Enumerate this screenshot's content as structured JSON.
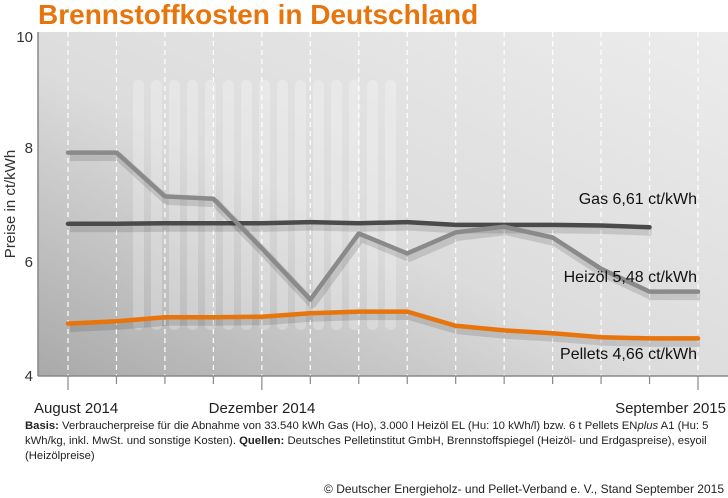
{
  "chart_data": {
    "type": "line",
    "title": "Brennstoffkosten in Deutschland",
    "ylabel": "Preise in ct/kWh",
    "ylim": [
      4,
      10
    ],
    "yticks": [
      "4",
      "6",
      "8",
      "10"
    ],
    "x": [
      "Aug 2014",
      "Sep 2014",
      "Okt 2014",
      "Nov 2014",
      "Dez 2014",
      "Jan 2015",
      "Feb 2015",
      "Mär 2015",
      "Apr 2015",
      "Mai 2015",
      "Jun 2015",
      "Jul 2015",
      "Aug 2015",
      "Sep 2015"
    ],
    "xtick_labels": {
      "first": "August 2014",
      "middle": "Dezember 2014",
      "last": "September 2015"
    },
    "grid": "vertical dashed white",
    "series": [
      {
        "name": "Gas",
        "label": "Gas 6,61 ct/kWh",
        "color": "#4a4a4a",
        "values": [
          6.67,
          6.67,
          6.68,
          6.68,
          6.68,
          6.7,
          6.68,
          6.7,
          6.65,
          6.65,
          6.65,
          6.64,
          6.61,
          null
        ]
      },
      {
        "name": "Heizöl",
        "label": "Heizöl 5,48 ct/kWh",
        "color": "#8a8a8a",
        "values": [
          7.92,
          7.92,
          7.15,
          7.11,
          6.24,
          5.34,
          6.5,
          6.15,
          6.52,
          6.62,
          6.43,
          5.88,
          5.48,
          5.48
        ]
      },
      {
        "name": "Pellets",
        "label": "Pellets 4,66 ct/kWh",
        "color": "#e8740c",
        "values": [
          4.92,
          4.96,
          5.03,
          5.03,
          5.04,
          5.1,
          5.13,
          5.13,
          4.88,
          4.8,
          4.75,
          4.68,
          4.66,
          4.66
        ]
      }
    ]
  },
  "footnote": {
    "basis_label": "Basis:",
    "basis_text": " Verbraucherpreise für die Abnahme von 33.540 kWh Gas (Ho), 3.000 l Heizöl EL (Hu: 10 kWh/l) bzw. 6 t Pellets EN",
    "plus": "plus",
    "basis_text2": " A1 (Hu: 5 kWh/kg, inkl. MwSt. und sonstige Kosten). ",
    "sources_label": "Quellen:",
    "sources_text": " Deutsches Pelletinstitut GmbH, Brennstoffspiegel (Heizöl- und Erdgaspreise), esyoil (Heizölpreise)"
  },
  "copyright": "© Deutscher Energieholz- und Pellet-Verband e. V., Stand September 2015"
}
